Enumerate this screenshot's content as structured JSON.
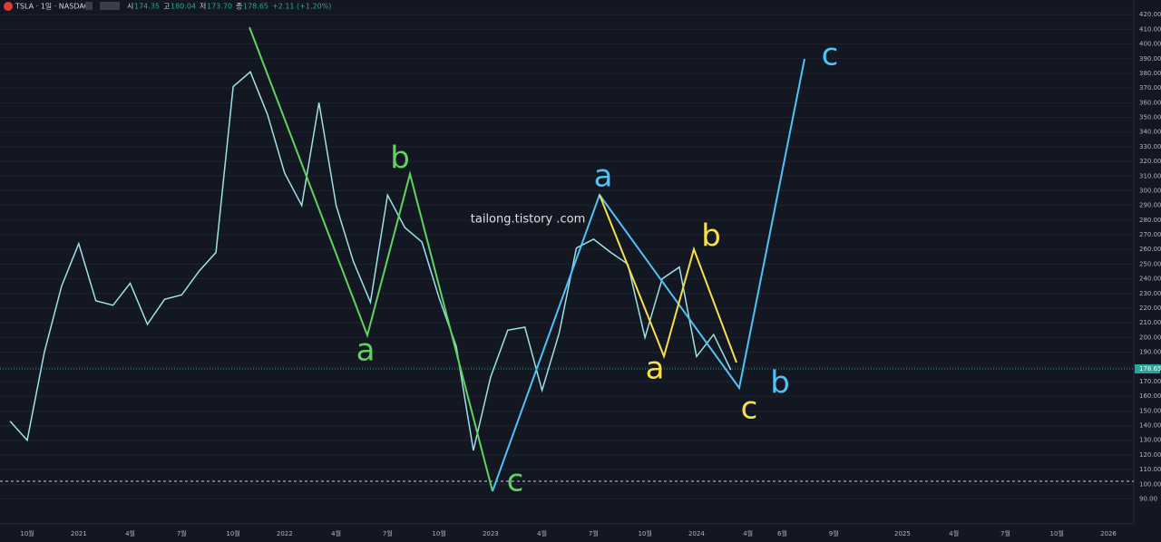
{
  "chart_data": {
    "type": "line",
    "header": {
      "symbol": "TSLA · 1일 · NASDAQ",
      "ohlc": [
        {
          "key": "시",
          "value": "174.35"
        },
        {
          "key": "고",
          "value": "180.04"
        },
        {
          "key": "저",
          "value": "173.70"
        },
        {
          "key": "종",
          "value": "178.65"
        }
      ],
      "change": "+2.11 (+1.20%)"
    },
    "watermark": "tailong.tistory .com",
    "categories": [
      null,
      "10월",
      null,
      null,
      "2021",
      null,
      null,
      "4월",
      null,
      null,
      "7월",
      null,
      null,
      "10월",
      null,
      null,
      "2022",
      null,
      null,
      "4월",
      null,
      null,
      "7월",
      null,
      null,
      "10월",
      null,
      null,
      "2023",
      null,
      null,
      "4월",
      null,
      null,
      "7월",
      null,
      null,
      "10월",
      null,
      null,
      "2024",
      null,
      null,
      "4월",
      null,
      "6월",
      null,
      null,
      "9월",
      null,
      null,
      null,
      "2025",
      null,
      null,
      "4월",
      null,
      null,
      "7월",
      null,
      null,
      "10월",
      null,
      null,
      "2026"
    ],
    "series": [
      {
        "color": "#9fe0e8",
        "values": [
          143,
          130,
          190,
          235,
          264,
          225,
          222,
          237,
          209,
          226,
          229,
          245,
          258,
          371,
          381,
          352,
          312,
          290,
          360,
          290,
          252,
          224,
          297,
          275,
          265,
          227,
          194,
          123,
          173,
          205,
          207,
          164,
          203,
          261,
          267,
          258,
          250,
          200,
          240,
          248,
          187,
          202,
          178,
          null,
          null,
          null,
          null,
          null,
          null,
          null,
          null,
          null,
          null,
          null,
          null,
          null,
          null,
          null,
          null,
          null,
          null,
          null,
          null,
          null,
          null
        ]
      }
    ],
    "ylim": [
      73,
      430
    ],
    "yticks": [
      {
        "value": 90,
        "label": "90.00"
      },
      {
        "value": 100,
        "label": "100.00"
      },
      {
        "value": 110,
        "label": "110.00"
      },
      {
        "value": 120,
        "label": "120.00"
      },
      {
        "value": 130,
        "label": "130.00"
      },
      {
        "value": 140,
        "label": "140.00"
      },
      {
        "value": 150,
        "label": "150.00"
      },
      {
        "value": 160,
        "label": "160.00"
      },
      {
        "value": 170,
        "label": "170.00"
      },
      {
        "value": 180,
        "label": "180.00"
      },
      {
        "value": 190,
        "label": "190.00"
      },
      {
        "value": 200,
        "label": "200.00"
      },
      {
        "value": 210,
        "label": "210.00"
      },
      {
        "value": 220,
        "label": "220.00"
      },
      {
        "value": 230,
        "label": "230.00"
      },
      {
        "value": 240,
        "label": "240.00"
      },
      {
        "value": 250,
        "label": "250.00"
      },
      {
        "value": 260,
        "label": "260.00"
      },
      {
        "value": 270,
        "label": "270.00"
      },
      {
        "value": 280,
        "label": "280.00"
      },
      {
        "value": 290,
        "label": "290.00"
      },
      {
        "value": 300,
        "label": "300.00"
      },
      {
        "value": 310,
        "label": "310.00"
      },
      {
        "value": 320,
        "label": "320.00"
      },
      {
        "value": 330,
        "label": "330.00"
      },
      {
        "value": 340,
        "label": "340.00"
      },
      {
        "value": 350,
        "label": "350.00"
      },
      {
        "value": 360,
        "label": "360.00"
      },
      {
        "value": 370,
        "label": "370.00"
      },
      {
        "value": 380,
        "label": "380.00"
      },
      {
        "value": 390,
        "label": "390.00"
      },
      {
        "value": 400,
        "label": "400.00"
      },
      {
        "value": 410,
        "label": "410.00"
      },
      {
        "value": 420,
        "label": "420.00"
      }
    ],
    "grid": true,
    "last_price": 178.65,
    "last_price_color": "#26a69a",
    "support_level": 102,
    "annotations": [
      {
        "text": "a",
        "color": "#5fd35f"
      },
      {
        "text": "b",
        "color": "#5fd35f"
      },
      {
        "text": "c",
        "color": "#5fd35f"
      },
      {
        "text": "a",
        "color": "#4fc3f7"
      },
      {
        "text": "c",
        "color": "#4fc3f7"
      },
      {
        "text": "b",
        "color": "#4fc3f7"
      },
      {
        "text": "a",
        "color": "#f5e04a"
      },
      {
        "text": "b",
        "color": "#f5e04a"
      },
      {
        "text": "c",
        "color": "#f5e04a"
      }
    ]
  }
}
